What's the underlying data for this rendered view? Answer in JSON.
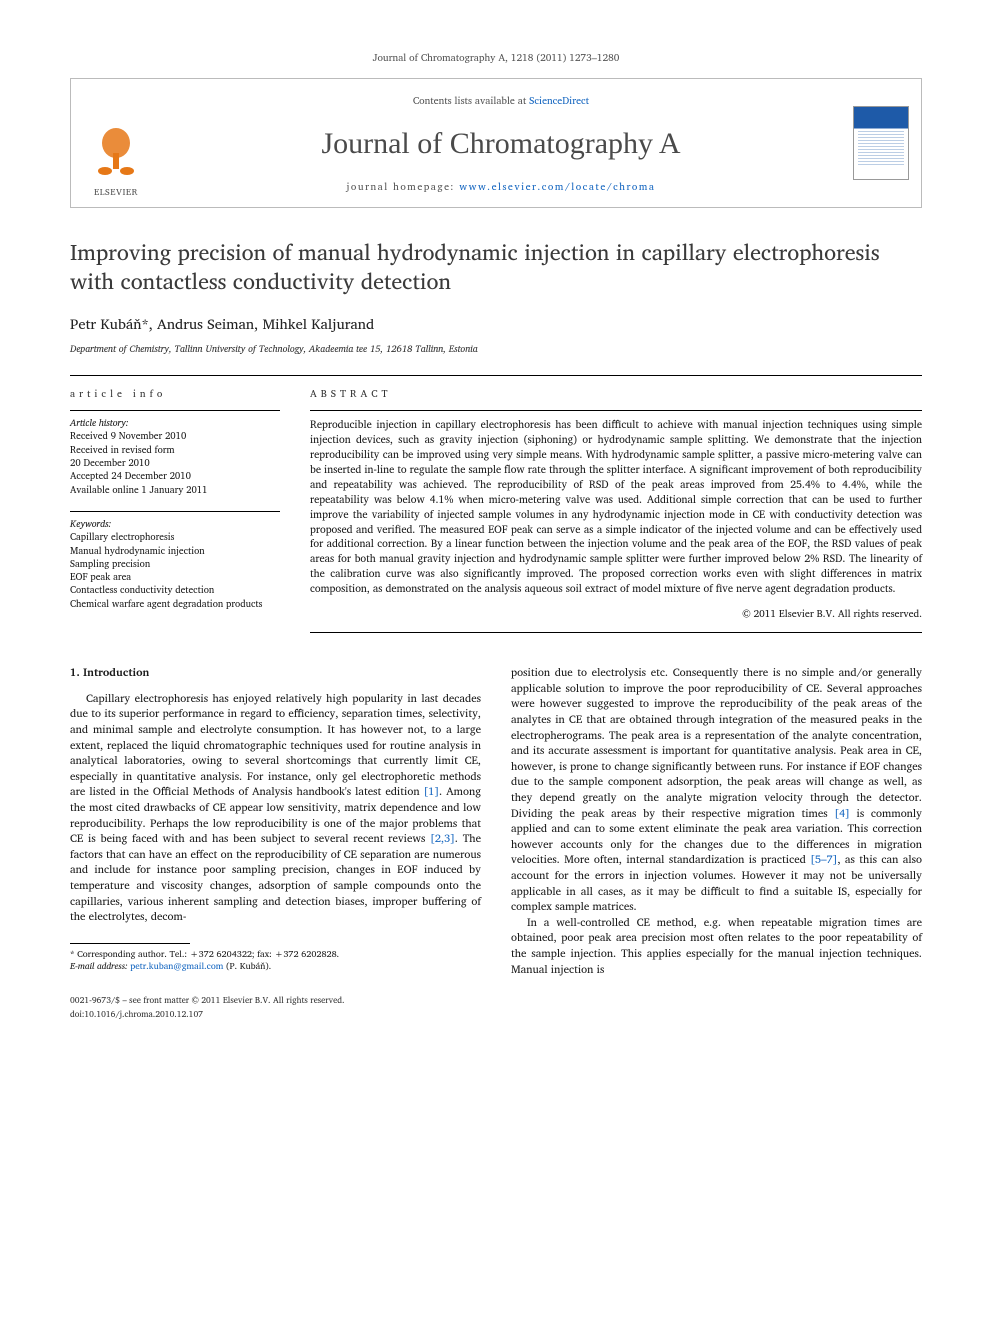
{
  "citation": "Journal of Chromatography A, 1218 (2011) 1273–1280",
  "header": {
    "contents_prefix": "Contents lists available at ",
    "contents_link": "ScienceDirect",
    "journal": "Journal of Chromatography A",
    "homepage_prefix": "journal homepage: ",
    "homepage_url": "www.elsevier.com/locate/chroma",
    "publisher": "ELSEVIER"
  },
  "title": "Improving precision of manual hydrodynamic injection in capillary electrophoresis with contactless conductivity detection",
  "authors": "Petr Kubáň*, Andrus Seiman, Mihkel Kaljurand",
  "affiliation": "Department of Chemistry, Tallinn University of Technology, Akadeemia tee 15, 12618 Tallinn, Estonia",
  "info_label": "article info",
  "abstract_label": "abstract",
  "history": {
    "head": "Article history:",
    "received": "Received 9 November 2010",
    "revised1": "Received in revised form",
    "revised2": "20 December 2010",
    "accepted": "Accepted 24 December 2010",
    "online": "Available online 1 January 2011"
  },
  "keywords": {
    "head": "Keywords:",
    "list": [
      "Capillary electrophoresis",
      "Manual hydrodynamic injection",
      "Sampling precision",
      "EOF peak area",
      "Contactless conductivity detection",
      "Chemical warfare agent degradation products"
    ]
  },
  "abstract": "Reproducible injection in capillary electrophoresis has been difficult to achieve with manual injection techniques using simple injection devices, such as gravity injection (siphoning) or hydrodynamic sample splitting. We demonstrate that the injection reproducibility can be improved using very simple means. With hydrodynamic sample splitter, a passive micro-metering valve can be inserted in-line to regulate the sample flow rate through the splitter interface. A significant improvement of both reproducibility and repeatability was achieved. The reproducibility of RSD of the peak areas improved from 25.4% to 4.4%, while the repeatability was below 4.1% when micro-metering valve was used. Additional simple correction that can be used to further improve the variability of injected sample volumes in any hydrodynamic injection mode in CE with conductivity detection was proposed and verified. The measured EOF peak can serve as a simple indicator of the injected volume and can be effectively used for additional correction. By a linear function between the injection volume and the peak area of the EOF, the RSD values of peak areas for both manual gravity injection and hydrodynamic sample splitter were further improved below 2% RSD. The linearity of the calibration curve was also significantly improved. The proposed correction works even with slight differences in matrix composition, as demonstrated on the analysis aqueous soil extract of model mixture of five nerve agent degradation products.",
  "copyright": "© 2011 Elsevier B.V. All rights reserved.",
  "intro_heading": "1.  Introduction",
  "intro_para1": "Capillary electrophoresis has enjoyed relatively high popularity in last decades due to its superior performance in regard to efficiency, separation times, selectivity, and minimal sample and electrolyte consumption. It has however not, to a large extent, replaced the liquid chromatographic techniques used for routine analysis in analytical laboratories, owing to several shortcomings that currently limit CE, especially in quantitative analysis. For instance, only gel electrophoretic methods are listed in the Official Methods of Analysis handbook's latest edition [1]. Among the most cited drawbacks of CE appear low sensitivity, matrix dependence and low reproducibility. Perhaps the low reproducibility is one of the major problems that CE is being faced with and has been subject to several recent reviews [2,3]. The factors that can have an effect on the reproducibility of CE separation are numerous and include for instance poor sampling precision, changes in EOF induced by temperature and viscosity changes, adsorption of sample compounds onto the capillaries, various inherent sampling and detection biases, improper buffering of the electrolytes, decom-",
  "intro_para2a": "position due to electrolysis etc. Consequently there is no simple and/or generally applicable solution to improve the poor reproducibility of CE. Several approaches were however suggested to improve the reproducibility of the peak areas of the analytes in CE that are obtained through integration of the measured peaks in the electropherograms. The peak area is a representation of the analyte concentration, and its accurate assessment is important for quantitative analysis. Peak area in CE, however, is prone to change significantly between runs. For instance if EOF changes due to the sample component adsorption, the peak areas will change as well, as they depend greatly on the analyte migration velocity through the detector. Dividing the peak areas by their respective migration times [4] is commonly applied and can to some extent eliminate the peak area variation. This correction however accounts only for the changes due to the differences in migration velocities. More often, internal standardization is practiced [5–7], as this can also account for the errors in injection volumes. However it may not be universally applicable in all cases, as it may be difficult to find a suitable IS, especially for complex sample matrices.",
  "intro_para2b": "In a well-controlled CE method, e.g. when repeatable migration times are obtained, poor peak area precision most often relates to the poor repeatability of the sample injection. This applies especially for the manual injection techniques. Manual injection is",
  "footnote": {
    "corr": "* Corresponding author. Tel.: +372 6204322; fax: +372 6202828.",
    "email_label": "E-mail address:",
    "email": "petr.kuban@gmail.com",
    "email_who": " (P. Kubáň)."
  },
  "footer": {
    "left1": "0021-9673/$ – see front matter © 2011 Elsevier B.V. All rights reserved.",
    "left2": "doi:10.1016/j.chroma.2010.12.107"
  },
  "colors": {
    "link": "#1566c0",
    "elsevier": "#e67817",
    "text": "#1a1a1a",
    "heading_gray": "#3a3a3a"
  }
}
